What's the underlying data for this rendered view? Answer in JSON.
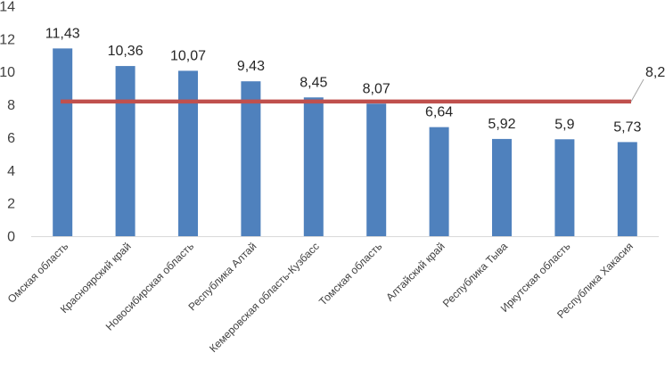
{
  "chart_data": {
    "type": "bar",
    "categories": [
      "Омская область",
      "Красноярский край",
      "Новосибирская область",
      "Республика Алтай",
      "Кемеровская область-Кузбасс",
      "Томская область",
      "Алтайский край",
      "Республика Тыва",
      "Иркутская область",
      "Республика Хакасия"
    ],
    "values": [
      11.43,
      10.36,
      10.07,
      9.43,
      8.45,
      8.07,
      6.64,
      5.92,
      5.9,
      5.73
    ],
    "value_labels": [
      "11,43",
      "10,36",
      "10,07",
      "9,43",
      "8,45",
      "8,07",
      "6,64",
      "5,92",
      "5,9",
      "5,73"
    ],
    "reference_line": {
      "value": 8.2,
      "label": "8,2"
    },
    "title": "",
    "xlabel": "",
    "ylabel": "",
    "ylim": [
      0,
      14
    ],
    "yticks": [
      0,
      2,
      4,
      6,
      8,
      10,
      12,
      14
    ],
    "grid": false,
    "legend": "none",
    "colors": {
      "bar": "#4f81bd",
      "reference_line": "#c0504d",
      "leader_line": "#a6a6a6",
      "axis": "#d9d9d9"
    }
  }
}
